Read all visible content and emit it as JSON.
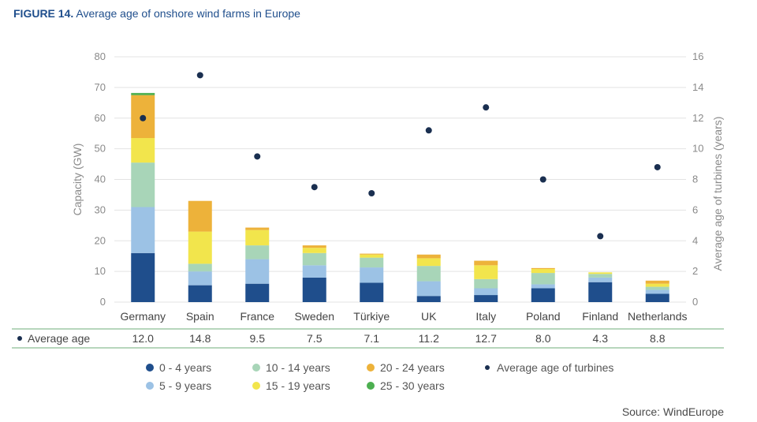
{
  "figure": {
    "label": "FIGURE 14.",
    "title": "Average age of onshore wind farms in Europe",
    "source": "Source: WindEurope"
  },
  "chart_data": {
    "type": "bar",
    "stacked": true,
    "categories": [
      "Germany",
      "Spain",
      "France",
      "Sweden",
      "Türkiye",
      "UK",
      "Italy",
      "Poland",
      "Finland",
      "Netherlands"
    ],
    "series": [
      {
        "name": "0 - 4 years",
        "color": "#1f4e8c",
        "values": [
          16.0,
          5.5,
          6.0,
          8.0,
          6.3,
          2.0,
          2.3,
          4.5,
          6.5,
          2.7
        ]
      },
      {
        "name": "5 - 9 years",
        "color": "#9cc2e5",
        "values": [
          15.0,
          4.5,
          8.0,
          4.0,
          5.0,
          4.8,
          2.2,
          1.3,
          1.5,
          1.3
        ]
      },
      {
        "name": "10 - 14 years",
        "color": "#a8d5b8",
        "values": [
          14.5,
          2.5,
          4.5,
          4.0,
          3.2,
          5.0,
          3.0,
          3.7,
          1.2,
          1.0
        ]
      },
      {
        "name": "15 - 19 years",
        "color": "#f2e54c",
        "values": [
          8.0,
          10.5,
          5.0,
          1.7,
          1.0,
          2.5,
          4.5,
          1.3,
          0.5,
          1.0
        ]
      },
      {
        "name": "20 - 24 years",
        "color": "#edb23a",
        "values": [
          14.0,
          10.0,
          0.8,
          0.8,
          0.3,
          1.2,
          1.5,
          0.3,
          0.0,
          1.0
        ]
      },
      {
        "name": "25 - 30 years",
        "color": "#4caf50",
        "values": [
          0.7,
          0.0,
          0.0,
          0.0,
          0.0,
          0.0,
          0.0,
          0.0,
          0.0,
          0.0
        ]
      }
    ],
    "average_age": {
      "name": "Average age of turbines",
      "row_label": "Average age",
      "color": "#1a2f50",
      "values": [
        12.0,
        14.8,
        9.5,
        7.5,
        7.1,
        11.2,
        12.7,
        8.0,
        4.3,
        8.8
      ],
      "display": [
        "12.0",
        "14.8",
        "9.5",
        "7.5",
        "7.1",
        "11.2",
        "12.7",
        "8.0",
        "4.3",
        "8.8"
      ]
    },
    "ylabel": "Capacity (GW)",
    "ylim": [
      0,
      80
    ],
    "yticks": [
      0,
      10,
      20,
      30,
      40,
      50,
      60,
      70,
      80
    ],
    "y2label": "Average age of turbines (years)",
    "y2lim": [
      0,
      16
    ],
    "y2ticks": [
      0,
      2,
      4,
      6,
      8,
      10,
      12,
      14,
      16
    ],
    "grid": true,
    "legend_position": "bottom"
  }
}
